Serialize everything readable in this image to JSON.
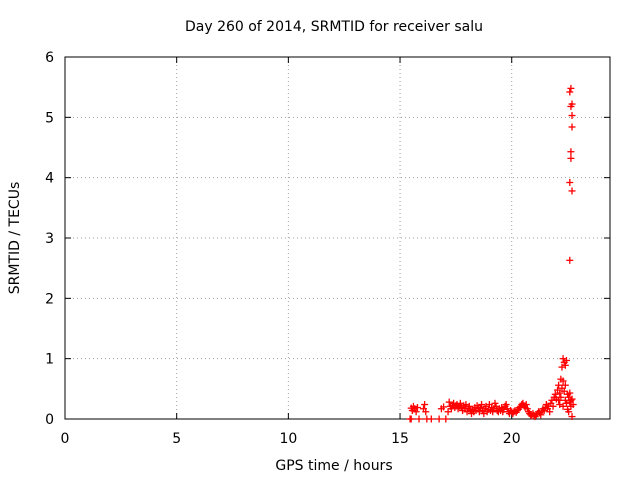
{
  "chart_data": {
    "type": "scatter",
    "title": "Day 260 of 2014, SRMTID for receiver salu",
    "xlabel": "GPS time / hours",
    "ylabel": "SRMTID / TECUs",
    "xlim": [
      0,
      24.4
    ],
    "ylim": [
      0,
      6
    ],
    "x_ticks": [
      0,
      5,
      10,
      15,
      20
    ],
    "y_ticks": [
      0,
      1,
      2,
      3,
      4,
      5,
      6
    ],
    "grid": true,
    "marker": "+",
    "series": [
      {
        "name": "SRMTID",
        "color": "#ff0000",
        "points": [
          [
            15.45,
            0.0
          ],
          [
            15.5,
            0.18
          ],
          [
            15.55,
            0.14
          ],
          [
            15.6,
            0.21
          ],
          [
            15.65,
            0.17
          ],
          [
            15.72,
            0.12
          ],
          [
            15.78,
            0.19
          ],
          [
            15.5,
            0.0
          ],
          [
            15.85,
            0.0
          ],
          [
            16.05,
            0.17
          ],
          [
            16.1,
            0.24
          ],
          [
            16.15,
            0.12
          ],
          [
            16.2,
            0.0
          ],
          [
            16.4,
            0.0
          ],
          [
            16.75,
            0.0
          ],
          [
            16.85,
            0.17
          ],
          [
            16.95,
            0.2
          ],
          [
            17.05,
            0.0
          ],
          [
            17.15,
            0.12
          ],
          [
            17.2,
            0.28
          ],
          [
            17.25,
            0.21
          ],
          [
            17.3,
            0.17
          ],
          [
            17.35,
            0.23
          ],
          [
            17.4,
            0.26
          ],
          [
            17.45,
            0.19
          ],
          [
            17.5,
            0.22
          ],
          [
            17.55,
            0.24
          ],
          [
            17.6,
            0.17
          ],
          [
            17.65,
            0.21
          ],
          [
            17.7,
            0.26
          ],
          [
            17.75,
            0.19
          ],
          [
            17.8,
            0.14
          ],
          [
            17.85,
            0.22
          ],
          [
            17.9,
            0.18
          ],
          [
            17.95,
            0.24
          ],
          [
            18.0,
            0.12
          ],
          [
            18.05,
            0.17
          ],
          [
            18.1,
            0.21
          ],
          [
            18.15,
            0.14
          ],
          [
            18.2,
            0.09
          ],
          [
            18.25,
            0.16
          ],
          [
            18.3,
            0.12
          ],
          [
            18.35,
            0.19
          ],
          [
            18.4,
            0.14
          ],
          [
            18.45,
            0.22
          ],
          [
            18.5,
            0.17
          ],
          [
            18.55,
            0.12
          ],
          [
            18.6,
            0.19
          ],
          [
            18.65,
            0.24
          ],
          [
            18.7,
            0.14
          ],
          [
            18.75,
            0.09
          ],
          [
            18.8,
            0.17
          ],
          [
            18.85,
            0.21
          ],
          [
            18.9,
            0.12
          ],
          [
            18.95,
            0.16
          ],
          [
            19.0,
            0.24
          ],
          [
            19.05,
            0.14
          ],
          [
            19.1,
            0.19
          ],
          [
            19.15,
            0.12
          ],
          [
            19.2,
            0.17
          ],
          [
            19.25,
            0.26
          ],
          [
            19.3,
            0.21
          ],
          [
            19.35,
            0.14
          ],
          [
            19.4,
            0.12
          ],
          [
            19.45,
            0.17
          ],
          [
            19.5,
            0.14
          ],
          [
            19.55,
            0.19
          ],
          [
            19.6,
            0.12
          ],
          [
            19.65,
            0.16
          ],
          [
            19.7,
            0.21
          ],
          [
            19.75,
            0.24
          ],
          [
            19.8,
            0.17
          ],
          [
            19.85,
            0.12
          ],
          [
            19.9,
            0.09
          ],
          [
            19.95,
            0.14
          ],
          [
            20.0,
            0.12
          ],
          [
            20.05,
            0.09
          ],
          [
            20.1,
            0.12
          ],
          [
            20.15,
            0.14
          ],
          [
            20.2,
            0.11
          ],
          [
            20.25,
            0.14
          ],
          [
            20.3,
            0.16
          ],
          [
            20.35,
            0.19
          ],
          [
            20.4,
            0.21
          ],
          [
            20.45,
            0.24
          ],
          [
            20.5,
            0.26
          ],
          [
            20.55,
            0.22
          ],
          [
            20.6,
            0.19
          ],
          [
            20.65,
            0.24
          ],
          [
            20.7,
            0.17
          ],
          [
            20.75,
            0.12
          ],
          [
            20.8,
            0.09
          ],
          [
            20.85,
            0.07
          ],
          [
            20.9,
            0.05
          ],
          [
            20.95,
            0.09
          ],
          [
            21.0,
            0.06
          ],
          [
            21.05,
            0.04
          ],
          [
            21.1,
            0.07
          ],
          [
            21.15,
            0.09
          ],
          [
            21.2,
            0.12
          ],
          [
            21.25,
            0.1
          ],
          [
            21.3,
            0.07
          ],
          [
            21.35,
            0.12
          ],
          [
            21.4,
            0.17
          ],
          [
            21.45,
            0.14
          ],
          [
            21.5,
            0.19
          ],
          [
            21.55,
            0.24
          ],
          [
            21.6,
            0.17
          ],
          [
            21.65,
            0.21
          ],
          [
            21.7,
            0.12
          ],
          [
            21.75,
            0.26
          ],
          [
            21.8,
            0.31
          ],
          [
            21.85,
            0.21
          ],
          [
            21.9,
            0.36
          ],
          [
            21.95,
            0.41
          ],
          [
            22.0,
            0.33
          ],
          [
            22.05,
            0.48
          ],
          [
            22.1,
            0.31
          ],
          [
            22.1,
            0.56
          ],
          [
            22.15,
            0.43
          ],
          [
            22.15,
            0.24
          ],
          [
            22.2,
            0.66
          ],
          [
            22.2,
            0.36
          ],
          [
            22.25,
            0.86
          ],
          [
            22.25,
            0.51
          ],
          [
            22.3,
            1.0
          ],
          [
            22.3,
            0.63
          ],
          [
            22.3,
            0.21
          ],
          [
            22.35,
            0.94
          ],
          [
            22.35,
            0.46
          ],
          [
            22.4,
            0.89
          ],
          [
            22.4,
            0.56
          ],
          [
            22.4,
            0.31
          ],
          [
            22.45,
            0.97
          ],
          [
            22.45,
            0.26
          ],
          [
            22.5,
            0.41
          ],
          [
            22.5,
            0.16
          ],
          [
            22.55,
            0.36
          ],
          [
            22.55,
            0.12
          ],
          [
            22.6,
            0.43
          ],
          [
            22.6,
            0.28
          ],
          [
            22.65,
            0.31
          ],
          [
            22.65,
            0.21
          ],
          [
            22.7,
            0.33
          ],
          [
            22.7,
            0.04
          ],
          [
            22.75,
            0.24
          ],
          [
            22.6,
            2.63
          ],
          [
            22.6,
            3.92
          ],
          [
            22.7,
            3.78
          ],
          [
            22.65,
            4.32
          ],
          [
            22.65,
            4.43
          ],
          [
            22.7,
            4.84
          ],
          [
            22.7,
            5.03
          ],
          [
            22.65,
            5.18
          ],
          [
            22.7,
            5.22
          ],
          [
            22.6,
            5.42
          ],
          [
            22.65,
            5.48
          ]
        ]
      }
    ]
  }
}
